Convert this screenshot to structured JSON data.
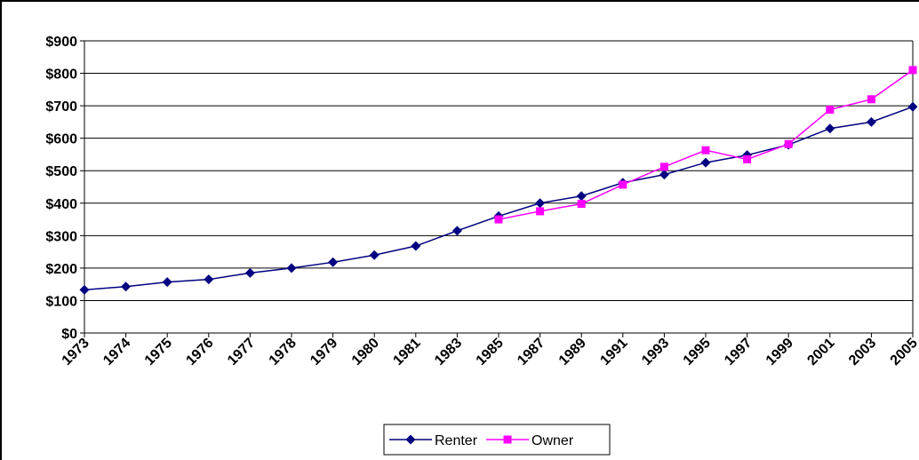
{
  "chart_data": {
    "type": "line",
    "categories": [
      "1973",
      "1974",
      "1975",
      "1976",
      "1977",
      "1978",
      "1979",
      "1980",
      "1981",
      "1983",
      "1985",
      "1987",
      "1989",
      "1991",
      "1993",
      "1995",
      "1997",
      "1999",
      "2001",
      "2003",
      "2005"
    ],
    "series": [
      {
        "name": "Renter",
        "color": "#000080",
        "marker": "diamond",
        "values": [
          133,
          143,
          157,
          165,
          185,
          200,
          218,
          240,
          268,
          315,
          360,
          400,
          422,
          463,
          488,
          525,
          548,
          580,
          630,
          650,
          697
        ]
      },
      {
        "name": "Owner",
        "color": "#ff00ff",
        "marker": "square",
        "values": [
          null,
          null,
          null,
          null,
          null,
          null,
          null,
          null,
          null,
          null,
          350,
          375,
          398,
          457,
          512,
          563,
          535,
          582,
          688,
          720,
          810
        ]
      }
    ],
    "ylim": [
      0,
      900
    ],
    "yticks": [
      {
        "value": 0,
        "label": "$0"
      },
      {
        "value": 100,
        "label": "$100"
      },
      {
        "value": 200,
        "label": "$200"
      },
      {
        "value": 300,
        "label": "$300"
      },
      {
        "value": 400,
        "label": "$400"
      },
      {
        "value": 500,
        "label": "$500"
      },
      {
        "value": 600,
        "label": "$600"
      },
      {
        "value": 700,
        "label": "$700"
      },
      {
        "value": 800,
        "label": "$800"
      },
      {
        "value": 900,
        "label": "$900"
      }
    ],
    "grid": true,
    "legend": "bottom"
  }
}
